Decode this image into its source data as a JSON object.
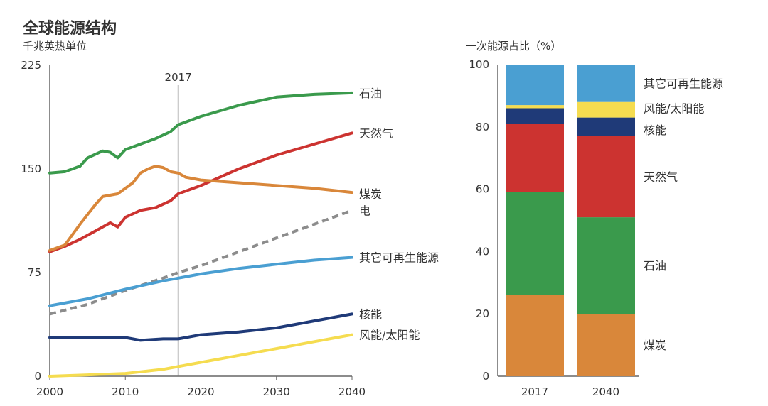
{
  "colors": {
    "oil": "#3a9a4c",
    "gas": "#cc3330",
    "coal": "#d9873a",
    "electricity": "#8c8c8c",
    "other_renewables": "#4a9fd2",
    "nuclear": "#1f3a78",
    "wind_solar": "#f5dc50"
  },
  "chart_data": [
    {
      "type": "line",
      "title": "全球能源结构",
      "ylabel": "千兆英热单位",
      "xlabel": "",
      "xlim": [
        2000,
        2040
      ],
      "ylim": [
        0,
        225
      ],
      "x_ticks": [
        2000,
        2010,
        2020,
        2030,
        2040
      ],
      "y_ticks": [
        0,
        75,
        150,
        225
      ],
      "grid": false,
      "annotations": [
        {
          "x": 2017,
          "label": "2017"
        }
      ],
      "series": [
        {
          "key": "oil",
          "name": "石油",
          "dashed": false,
          "points": [
            [
              2000,
              147
            ],
            [
              2002,
              148
            ],
            [
              2004,
              152
            ],
            [
              2005,
              158
            ],
            [
              2007,
              163
            ],
            [
              2008,
              162
            ],
            [
              2009,
              158
            ],
            [
              2010,
              164
            ],
            [
              2012,
              168
            ],
            [
              2014,
              172
            ],
            [
              2016,
              177
            ],
            [
              2017,
              182
            ],
            [
              2020,
              188
            ],
            [
              2025,
              196
            ],
            [
              2030,
              202
            ],
            [
              2035,
              204
            ],
            [
              2040,
              205
            ]
          ]
        },
        {
          "key": "gas",
          "name": "天然气",
          "dashed": false,
          "points": [
            [
              2000,
              90
            ],
            [
              2002,
              94
            ],
            [
              2004,
              99
            ],
            [
              2006,
              105
            ],
            [
              2008,
              111
            ],
            [
              2009,
              108
            ],
            [
              2010,
              115
            ],
            [
              2012,
              120
            ],
            [
              2014,
              122
            ],
            [
              2016,
              127
            ],
            [
              2017,
              132
            ],
            [
              2020,
              138
            ],
            [
              2025,
              150
            ],
            [
              2030,
              160
            ],
            [
              2035,
              168
            ],
            [
              2040,
              176
            ]
          ]
        },
        {
          "key": "coal",
          "name": "煤炭",
          "dashed": false,
          "points": [
            [
              2000,
              91
            ],
            [
              2002,
              95
            ],
            [
              2004,
              110
            ],
            [
              2006,
              124
            ],
            [
              2007,
              130
            ],
            [
              2009,
              132
            ],
            [
              2011,
              140
            ],
            [
              2012,
              147
            ],
            [
              2013,
              150
            ],
            [
              2014,
              152
            ],
            [
              2015,
              151
            ],
            [
              2016,
              148
            ],
            [
              2017,
              147
            ],
            [
              2018,
              144
            ],
            [
              2020,
              142
            ],
            [
              2025,
              140
            ],
            [
              2030,
              138
            ],
            [
              2035,
              136
            ],
            [
              2040,
              133
            ]
          ]
        },
        {
          "key": "electricity",
          "name": "电",
          "dashed": true,
          "points": [
            [
              2000,
              45
            ],
            [
              2005,
              52
            ],
            [
              2010,
              62
            ],
            [
              2015,
              71
            ],
            [
              2017,
              75
            ],
            [
              2020,
              80
            ],
            [
              2025,
              90
            ],
            [
              2030,
              100
            ],
            [
              2035,
              110
            ],
            [
              2040,
              120
            ]
          ]
        },
        {
          "key": "other_renewables",
          "name": "其它可再生能源",
          "dashed": false,
          "points": [
            [
              2000,
              51
            ],
            [
              2005,
              56
            ],
            [
              2010,
              63
            ],
            [
              2015,
              69
            ],
            [
              2017,
              71
            ],
            [
              2020,
              74
            ],
            [
              2025,
              78
            ],
            [
              2030,
              81
            ],
            [
              2035,
              84
            ],
            [
              2040,
              86
            ]
          ]
        },
        {
          "key": "nuclear",
          "name": "核能",
          "dashed": false,
          "points": [
            [
              2000,
              28
            ],
            [
              2005,
              28
            ],
            [
              2010,
              28
            ],
            [
              2012,
              26
            ],
            [
              2015,
              27
            ],
            [
              2017,
              27
            ],
            [
              2020,
              30
            ],
            [
              2025,
              32
            ],
            [
              2030,
              35
            ],
            [
              2035,
              40
            ],
            [
              2040,
              45
            ]
          ]
        },
        {
          "key": "wind_solar",
          "name": "风能/太阳能",
          "dashed": false,
          "points": [
            [
              2000,
              0
            ],
            [
              2005,
              1
            ],
            [
              2010,
              2
            ],
            [
              2015,
              5
            ],
            [
              2017,
              7
            ],
            [
              2020,
              10
            ],
            [
              2025,
              15
            ],
            [
              2030,
              20
            ],
            [
              2035,
              25
            ],
            [
              2040,
              30
            ]
          ]
        }
      ]
    },
    {
      "type": "bar",
      "stacked": true,
      "title": "一次能源占比（%）",
      "xlabel": "",
      "ylabel": "",
      "ylim": [
        0,
        100
      ],
      "y_ticks": [
        0,
        20,
        40,
        60,
        80,
        100
      ],
      "categories": [
        "2017",
        "2040"
      ],
      "series": [
        {
          "key": "coal",
          "name": "煤炭",
          "values": [
            26,
            20
          ]
        },
        {
          "key": "oil",
          "name": "石油",
          "values": [
            33,
            31
          ]
        },
        {
          "key": "gas",
          "name": "天然气",
          "values": [
            22,
            26
          ]
        },
        {
          "key": "nuclear",
          "name": "核能",
          "values": [
            5,
            6
          ]
        },
        {
          "key": "wind_solar",
          "name": "风能/太阳能",
          "values": [
            1,
            5
          ]
        },
        {
          "key": "other_renewables",
          "name": "其它可再生能源",
          "values": [
            13,
            12
          ]
        }
      ],
      "labels": [
        {
          "key": "other_renewables",
          "text": "其它可再生能源"
        },
        {
          "key": "wind_solar",
          "text": "风能/太阳能"
        },
        {
          "key": "nuclear",
          "text": "核能"
        },
        {
          "key": "gas",
          "text": "天然气"
        },
        {
          "key": "oil",
          "text": "石油"
        },
        {
          "key": "coal",
          "text": "煤炭"
        }
      ]
    }
  ]
}
